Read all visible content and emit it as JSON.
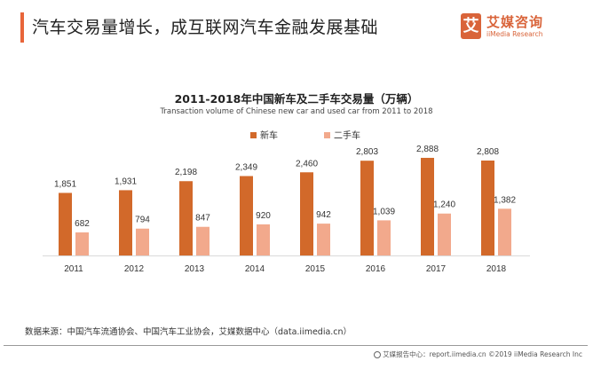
{
  "header": {
    "title": "汽车交易量增长，成互联网汽车金融发展基础",
    "logo_mark": "艾",
    "logo_cn": "艾媒咨询",
    "logo_en": "iiMedia Research"
  },
  "colors": {
    "accent": "#e8653a",
    "new_car": "#d2692a",
    "used_car": "#f2a98c"
  },
  "chart_data": {
    "type": "bar",
    "title": "2011-2018年中国新车及二手车交易量（万辆）",
    "subtitle": "Transaction volume of Chinese new car and used car from 2011 to 2018",
    "xlabel": "",
    "ylabel": "",
    "categories": [
      "2011",
      "2012",
      "2013",
      "2014",
      "2015",
      "2016",
      "2017",
      "2018"
    ],
    "series": [
      {
        "name": "新车",
        "values": [
          1851,
          1931,
          2198,
          2349,
          2460,
          2803,
          2888,
          2808
        ]
      },
      {
        "name": "二手车",
        "values": [
          682,
          794,
          847,
          920,
          942,
          1039,
          1240,
          1382
        ]
      }
    ],
    "data_labels": [
      [
        "1,851",
        "1,931",
        "2,198",
        "2,349",
        "2,460",
        "2,803",
        "2,888",
        "2,808"
      ],
      [
        "682",
        "794",
        "847",
        "920",
        "942",
        "1,039",
        "1,240",
        "1,382"
      ]
    ],
    "ylim": [
      0,
      3000
    ],
    "grid": false,
    "legend": "top-center"
  },
  "footer": {
    "source": "数据来源：中国汽车流通协会、中国汽车工业协会，艾媒数据中心（data.iimedia.cn）",
    "credit": "艾媒报告中心：report.iimedia.cn ©2019 iiMedia Research Inc"
  }
}
